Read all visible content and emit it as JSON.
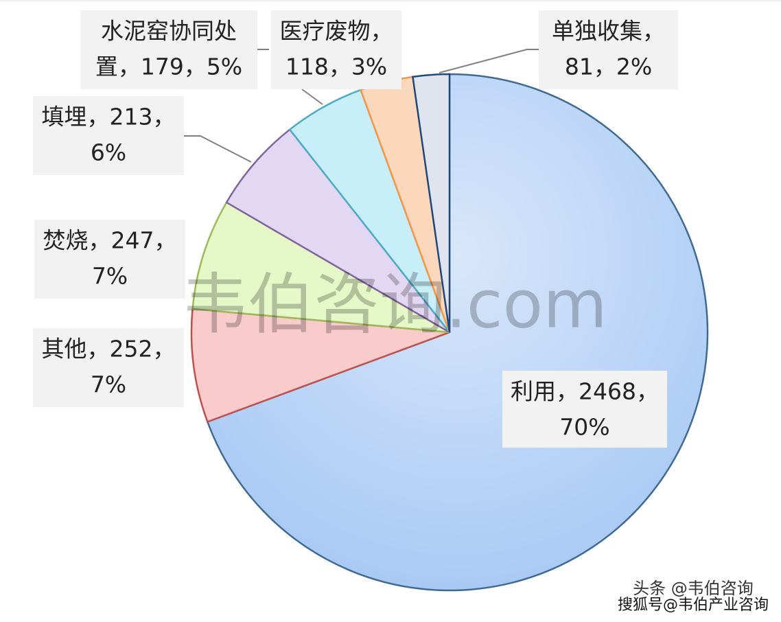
{
  "chart_data": {
    "type": "pie",
    "categories": [
      "利用",
      "其他",
      "焚烧",
      "填埋",
      "水泥窑协同处置",
      "医疗废物",
      "单独收集"
    ],
    "values": [
      2468,
      252,
      247,
      213,
      179,
      118,
      81
    ],
    "value_labels": [
      [
        "利用，2468，",
        "70%"
      ],
      [
        "其他，252，",
        "7%"
      ],
      [
        "焚烧，247，",
        "7%"
      ],
      [
        "填埋，213，",
        "6%"
      ],
      [
        "水泥窑协同处",
        "置，179，5%"
      ],
      [
        "医疗废物，",
        "118，3%"
      ],
      [
        "单独收集，",
        "81，2%"
      ]
    ],
    "colors": [
      "#b9d3f6",
      "#f9cccb",
      "#e6f7c8",
      "#e3d8f3",
      "#c8eef9",
      "#fbd8bc",
      "#dfe4ee"
    ],
    "edge_colors": [
      "#3f6b93",
      "#c0504d",
      "#9bbb59",
      "#8064a2",
      "#4bacc6",
      "#f79646",
      "#1f497d"
    ]
  },
  "watermarks": [
    "韦伯咨询.com",
    "头条 @韦伯咨询",
    "搜狐号@韦伯产业咨询"
  ]
}
